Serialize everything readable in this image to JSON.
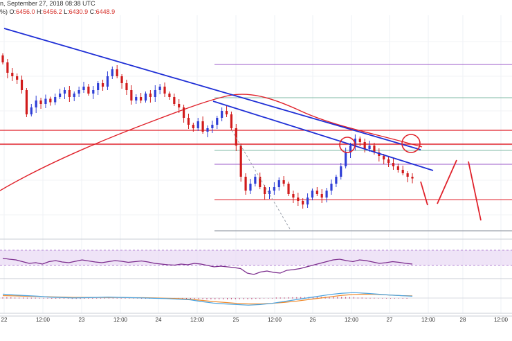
{
  "header": {
    "line1": "n, September 27, 2018 08:38 UTC",
    "line2_prefix": "%) ",
    "o_label": "O:",
    "o_value": "6456.0",
    "h_label": " H:",
    "h_value": "6456.2",
    "l_label": " L:",
    "l_value": "6430.9",
    "c_label": " C:",
    "c_value": "6448.9"
  },
  "x_ticks": [
    "22",
    "12:00",
    "23",
    "12:00",
    "24",
    "12:00",
    "25",
    "12:00",
    "26",
    "12:00",
    "27",
    "12:00",
    "28",
    "12:00"
  ],
  "colors": {
    "bull": "#2f3fd6",
    "bear": "#d11b1b",
    "trend": "#1f2fd6",
    "ema": "#e0222b",
    "level": "#e0222b",
    "rsi": "#7a2a8c",
    "rsi_band": "#e8d8f4",
    "macd": "#4aa3e0",
    "signal": "#f08a2c"
  },
  "chart_data": {
    "type": "candlestick",
    "title": "",
    "x_axis_ticks": [
      "22",
      "12:00",
      "23",
      "12:00",
      "24",
      "12:00",
      "25",
      "12:00",
      "26",
      "12:00",
      "27",
      "12:00",
      "28",
      "12:00"
    ],
    "ohlc_latest": {
      "open": 6456.0,
      "high": 6456.2,
      "low": 6430.9,
      "close": 6448.9
    },
    "candles_relative_close": [
      0.88,
      0.82,
      0.8,
      0.78,
      0.72,
      0.58,
      0.62,
      0.66,
      0.64,
      0.67,
      0.65,
      0.68,
      0.7,
      0.72,
      0.68,
      0.7,
      0.72,
      0.74,
      0.7,
      0.72,
      0.76,
      0.74,
      0.8,
      0.84,
      0.8,
      0.76,
      0.72,
      0.66,
      0.68,
      0.66,
      0.7,
      0.68,
      0.72,
      0.74,
      0.7,
      0.68,
      0.64,
      0.62,
      0.56,
      0.52,
      0.5,
      0.54,
      0.48,
      0.5,
      0.52,
      0.56,
      0.6,
      0.58,
      0.5,
      0.4,
      0.22,
      0.14,
      0.18,
      0.22,
      0.16,
      0.12,
      0.14,
      0.16,
      0.2,
      0.18,
      0.12,
      0.1,
      0.08,
      0.06,
      0.1,
      0.14,
      0.12,
      0.1,
      0.14,
      0.18,
      0.22,
      0.28,
      0.36,
      0.4,
      0.44,
      0.42,
      0.38,
      0.4,
      0.36,
      0.34,
      0.32,
      0.3,
      0.28,
      0.26,
      0.24,
      0.22,
      0.21
    ],
    "rsi_relative": [
      0.55,
      0.52,
      0.5,
      0.45,
      0.4,
      0.42,
      0.38,
      0.45,
      0.48,
      0.44,
      0.42,
      0.46,
      0.5,
      0.47,
      0.44,
      0.42,
      0.45,
      0.48,
      0.46,
      0.43,
      0.45,
      0.47,
      0.44,
      0.4,
      0.38,
      0.36,
      0.35,
      0.38,
      0.36,
      0.4,
      0.38,
      0.34,
      0.3,
      0.32,
      0.3,
      0.28,
      0.25,
      0.12,
      0.08,
      0.15,
      0.18,
      0.14,
      0.12,
      0.2,
      0.22,
      0.25,
      0.3,
      0.35,
      0.4,
      0.45,
      0.5,
      0.52,
      0.48,
      0.45,
      0.5,
      0.48,
      0.44,
      0.4,
      0.42,
      0.45,
      0.43,
      0.4,
      0.38
    ],
    "macd_relative": [
      0.55,
      0.52,
      0.5,
      0.48,
      0.45,
      0.44,
      0.42,
      0.43,
      0.44,
      0.45,
      0.44,
      0.43,
      0.42,
      0.41,
      0.4,
      0.38,
      0.36,
      0.3,
      0.25,
      0.22,
      0.2,
      0.18,
      0.2,
      0.24,
      0.3,
      0.36,
      0.42,
      0.48,
      0.54,
      0.58,
      0.6,
      0.58,
      0.55,
      0.52,
      0.5,
      0.48
    ],
    "signal_relative": [
      0.5,
      0.49,
      0.48,
      0.47,
      0.46,
      0.45,
      0.44,
      0.44,
      0.44,
      0.44,
      0.44,
      0.43,
      0.43,
      0.42,
      0.41,
      0.4,
      0.38,
      0.34,
      0.3,
      0.27,
      0.24,
      0.22,
      0.22,
      0.24,
      0.27,
      0.31,
      0.36,
      0.41,
      0.46,
      0.51,
      0.54,
      0.55,
      0.54,
      0.52,
      0.5,
      0.49
    ]
  }
}
